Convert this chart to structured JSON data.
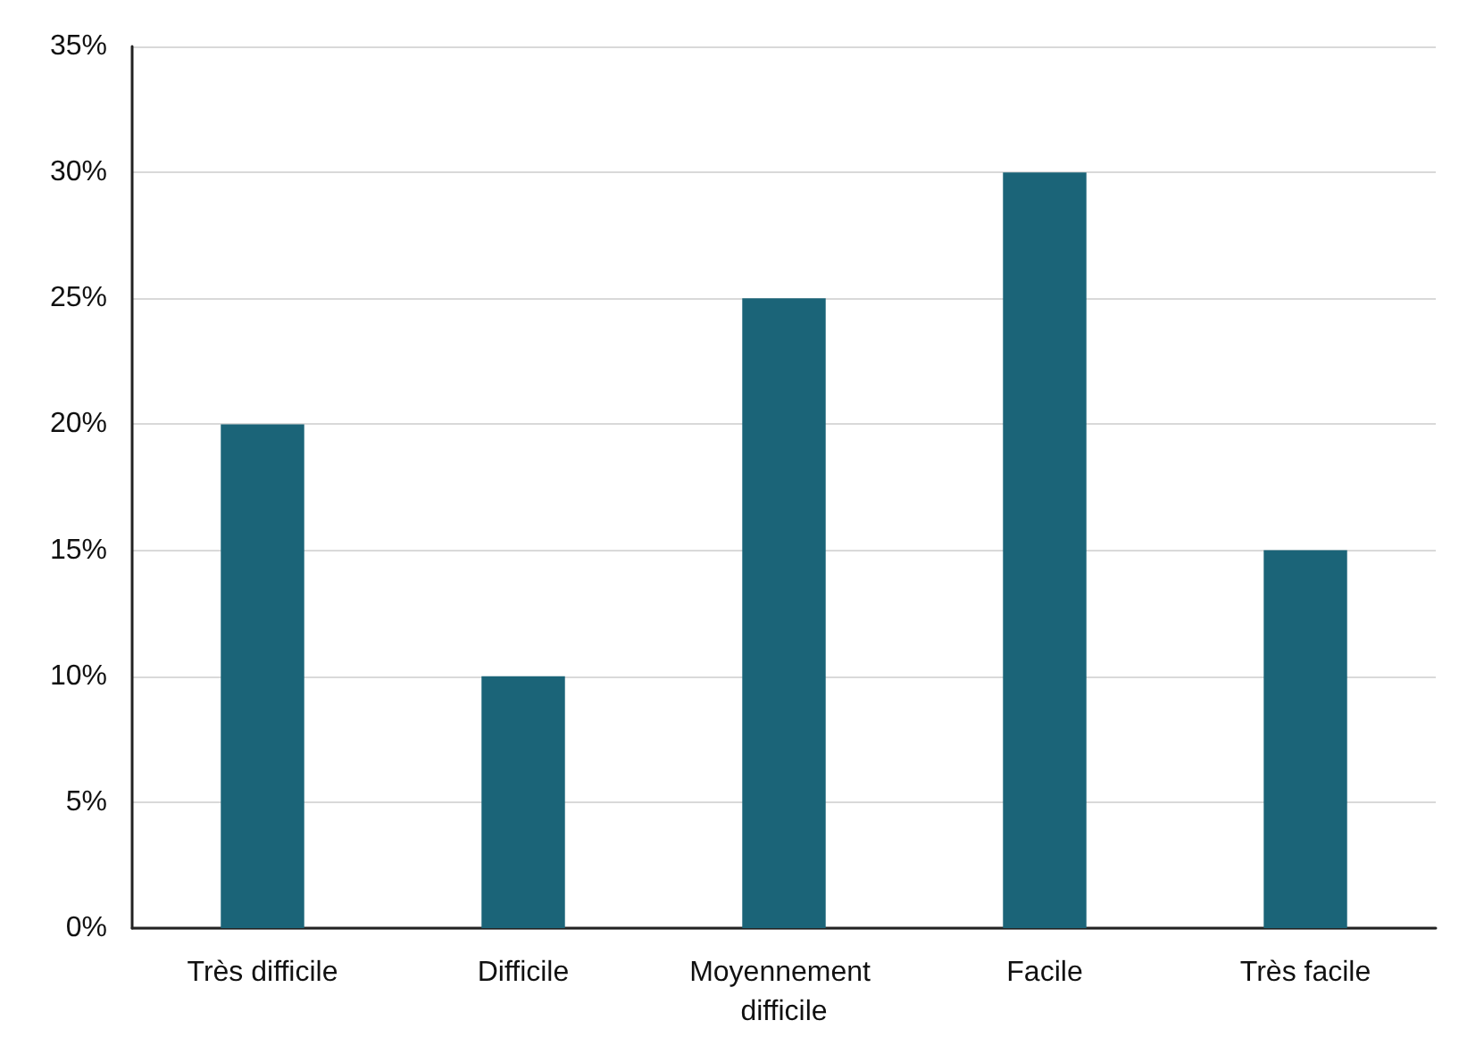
{
  "chart_data": {
    "type": "bar",
    "categories": [
      "Très difficile",
      "Difficile",
      "Moyennement difficile",
      "Facile",
      "Très facile"
    ],
    "values": [
      20,
      10,
      25,
      30,
      15
    ],
    "color": "#1b6478",
    "ylim": [
      0,
      35
    ],
    "yticks": [
      {
        "value": 0,
        "label": "0%"
      },
      {
        "value": 5,
        "label": "5%"
      },
      {
        "value": 10,
        "label": "10%"
      },
      {
        "value": 15,
        "label": "15%"
      },
      {
        "value": 20,
        "label": "20%"
      },
      {
        "value": 25,
        "label": "25%"
      },
      {
        "value": 30,
        "label": "30%"
      },
      {
        "value": 35,
        "label": "35%"
      }
    ],
    "grid": "y"
  }
}
